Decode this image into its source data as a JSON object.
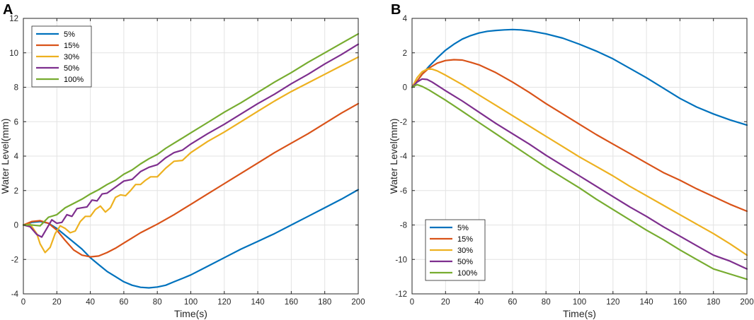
{
  "colors": {
    "s5": "#0072BD",
    "s15": "#D95319",
    "s30": "#EDB120",
    "s50": "#7E2F8E",
    "s100": "#77AC30"
  },
  "chart_data": [
    {
      "panel": "A",
      "type": "line",
      "title": "",
      "xlabel": "Time(s)",
      "ylabel": "Water Level(mm)",
      "xlim": [
        0,
        200
      ],
      "ylim": [
        -4,
        12
      ],
      "xticks": [
        0,
        20,
        40,
        60,
        80,
        100,
        120,
        140,
        160,
        180,
        200
      ],
      "yticks": [
        -4,
        -2,
        0,
        2,
        4,
        6,
        8,
        10,
        12
      ],
      "grid": true,
      "legend_position": "top-left",
      "series": [
        {
          "name": "5%",
          "color_key": "s5",
          "x": [
            0,
            5,
            10,
            15,
            20,
            25,
            30,
            35,
            40,
            45,
            50,
            55,
            60,
            65,
            70,
            75,
            80,
            85,
            90,
            95,
            100,
            110,
            120,
            130,
            140,
            150,
            160,
            170,
            180,
            190,
            200
          ],
          "y": [
            0,
            0.15,
            0.2,
            0.1,
            -0.2,
            -0.6,
            -1.0,
            -1.4,
            -1.9,
            -2.3,
            -2.7,
            -3.0,
            -3.3,
            -3.5,
            -3.62,
            -3.65,
            -3.6,
            -3.5,
            -3.3,
            -3.1,
            -2.9,
            -2.4,
            -1.9,
            -1.4,
            -0.95,
            -0.5,
            0.0,
            0.5,
            1.0,
            1.5,
            2.05
          ]
        },
        {
          "name": "15%",
          "color_key": "s15",
          "x": [
            0,
            5,
            10,
            15,
            20,
            25,
            30,
            35,
            40,
            45,
            50,
            55,
            60,
            65,
            70,
            75,
            80,
            90,
            100,
            110,
            120,
            130,
            140,
            150,
            160,
            170,
            180,
            190,
            200
          ],
          "y": [
            0,
            0.2,
            0.25,
            0.1,
            -0.3,
            -0.9,
            -1.45,
            -1.75,
            -1.85,
            -1.8,
            -1.6,
            -1.35,
            -1.05,
            -0.75,
            -0.45,
            -0.2,
            0.05,
            0.6,
            1.2,
            1.8,
            2.4,
            3.0,
            3.6,
            4.2,
            4.75,
            5.3,
            5.9,
            6.5,
            7.05
          ]
        },
        {
          "name": "30%",
          "color_key": "s30",
          "x": [
            0,
            4,
            8,
            10,
            13,
            16,
            19,
            22,
            25,
            28,
            31,
            34,
            37,
            40,
            43,
            46,
            49,
            52,
            55,
            58,
            61,
            64,
            67,
            70,
            73,
            76,
            80,
            85,
            90,
            95,
            100,
            110,
            120,
            130,
            140,
            150,
            160,
            170,
            180,
            190,
            200
          ],
          "y": [
            0,
            0.05,
            -0.5,
            -1.1,
            -1.6,
            -1.3,
            -0.5,
            -0.05,
            -0.2,
            -0.45,
            -0.35,
            0.2,
            0.5,
            0.5,
            0.9,
            1.1,
            0.75,
            1.0,
            1.6,
            1.75,
            1.7,
            2.0,
            2.35,
            2.35,
            2.6,
            2.8,
            2.8,
            3.3,
            3.7,
            3.75,
            4.2,
            4.85,
            5.4,
            6.0,
            6.6,
            7.2,
            7.75,
            8.25,
            8.75,
            9.25,
            9.75
          ]
        },
        {
          "name": "50%",
          "color_key": "s50",
          "x": [
            0,
            4,
            8,
            11,
            14,
            17,
            20,
            23,
            26,
            29,
            32,
            35,
            38,
            41,
            44,
            47,
            50,
            55,
            60,
            65,
            70,
            75,
            80,
            85,
            90,
            95,
            100,
            110,
            120,
            130,
            140,
            150,
            160,
            170,
            180,
            190,
            200
          ],
          "y": [
            0,
            -0.1,
            -0.55,
            -0.7,
            -0.2,
            0.3,
            0.1,
            0.15,
            0.6,
            0.5,
            0.95,
            1.0,
            1.05,
            1.45,
            1.4,
            1.8,
            1.85,
            2.2,
            2.55,
            2.65,
            3.1,
            3.35,
            3.5,
            3.9,
            4.2,
            4.35,
            4.7,
            5.3,
            5.85,
            6.45,
            7.05,
            7.6,
            8.2,
            8.75,
            9.35,
            9.9,
            10.5
          ]
        },
        {
          "name": "100%",
          "color_key": "s100",
          "x": [
            0,
            5,
            10,
            15,
            20,
            25,
            30,
            35,
            40,
            45,
            50,
            55,
            60,
            65,
            70,
            75,
            80,
            85,
            90,
            95,
            100,
            110,
            120,
            130,
            140,
            150,
            160,
            170,
            180,
            190,
            200
          ],
          "y": [
            0,
            0.0,
            -0.05,
            0.45,
            0.6,
            1.0,
            1.25,
            1.5,
            1.8,
            2.05,
            2.35,
            2.6,
            2.95,
            3.2,
            3.55,
            3.85,
            4.1,
            4.45,
            4.75,
            5.05,
            5.35,
            5.95,
            6.55,
            7.1,
            7.7,
            8.3,
            8.85,
            9.45,
            10.0,
            10.55,
            11.1
          ]
        }
      ]
    },
    {
      "panel": "B",
      "type": "line",
      "title": "",
      "xlabel": "Time(s)",
      "ylabel": "Water Level(mm)",
      "xlim": [
        0,
        200
      ],
      "ylim": [
        -12,
        4
      ],
      "xticks": [
        0,
        20,
        40,
        60,
        80,
        100,
        120,
        140,
        160,
        180,
        200
      ],
      "yticks": [
        -12,
        -10,
        -8,
        -6,
        -4,
        -2,
        0,
        2,
        4
      ],
      "grid": true,
      "legend_position": "bottom-left",
      "series": [
        {
          "name": "5%",
          "color_key": "s5",
          "x": [
            0,
            3,
            6,
            10,
            15,
            20,
            25,
            30,
            35,
            40,
            45,
            50,
            55,
            60,
            65,
            70,
            80,
            90,
            100,
            110,
            120,
            130,
            140,
            150,
            160,
            170,
            180,
            190,
            200
          ],
          "y": [
            0,
            0.35,
            0.75,
            1.2,
            1.7,
            2.15,
            2.5,
            2.8,
            3.0,
            3.15,
            3.25,
            3.3,
            3.33,
            3.35,
            3.33,
            3.28,
            3.1,
            2.85,
            2.5,
            2.1,
            1.65,
            1.1,
            0.55,
            -0.05,
            -0.65,
            -1.15,
            -1.55,
            -1.9,
            -2.2
          ]
        },
        {
          "name": "15%",
          "color_key": "s15",
          "x": [
            0,
            3,
            6,
            10,
            15,
            20,
            25,
            30,
            35,
            40,
            50,
            60,
            70,
            80,
            90,
            100,
            110,
            120,
            130,
            140,
            150,
            160,
            170,
            180,
            190,
            200
          ],
          "y": [
            0,
            0.35,
            0.75,
            1.1,
            1.4,
            1.55,
            1.6,
            1.58,
            1.45,
            1.3,
            0.85,
            0.3,
            -0.3,
            -0.95,
            -1.55,
            -2.15,
            -2.75,
            -3.3,
            -3.85,
            -4.4,
            -4.95,
            -5.4,
            -5.9,
            -6.35,
            -6.8,
            -7.2
          ]
        },
        {
          "name": "30%",
          "color_key": "s30",
          "x": [
            0,
            3,
            6,
            9,
            12,
            15,
            20,
            30,
            40,
            50,
            60,
            70,
            80,
            90,
            100,
            110,
            120,
            130,
            140,
            150,
            160,
            170,
            180,
            190,
            200
          ],
          "y": [
            0,
            0.55,
            0.9,
            1.05,
            1.05,
            0.95,
            0.7,
            0.15,
            -0.45,
            -1.05,
            -1.65,
            -2.25,
            -2.85,
            -3.45,
            -4.05,
            -4.6,
            -5.15,
            -5.75,
            -6.3,
            -6.85,
            -7.4,
            -7.95,
            -8.5,
            -9.1,
            -9.75
          ]
        },
        {
          "name": "50%",
          "color_key": "s50",
          "x": [
            0,
            3,
            6,
            9,
            12,
            20,
            30,
            40,
            50,
            60,
            70,
            80,
            90,
            100,
            110,
            120,
            130,
            140,
            150,
            160,
            170,
            180,
            190,
            200
          ],
          "y": [
            0,
            0.3,
            0.48,
            0.45,
            0.3,
            -0.2,
            -0.8,
            -1.45,
            -2.1,
            -2.7,
            -3.3,
            -3.95,
            -4.55,
            -5.15,
            -5.75,
            -6.35,
            -6.95,
            -7.5,
            -8.1,
            -8.65,
            -9.2,
            -9.75,
            -10.1,
            -10.55
          ]
        },
        {
          "name": "100%",
          "color_key": "s100",
          "x": [
            0,
            3,
            6,
            10,
            20,
            30,
            40,
            50,
            60,
            70,
            80,
            90,
            100,
            110,
            120,
            130,
            140,
            150,
            160,
            170,
            180,
            190,
            200
          ],
          "y": [
            0,
            0.15,
            0.05,
            -0.15,
            -0.75,
            -1.4,
            -2.05,
            -2.7,
            -3.35,
            -4.0,
            -4.65,
            -5.25,
            -5.85,
            -6.5,
            -7.1,
            -7.7,
            -8.3,
            -8.85,
            -9.45,
            -10.0,
            -10.55,
            -10.85,
            -11.15
          ]
        }
      ]
    }
  ]
}
